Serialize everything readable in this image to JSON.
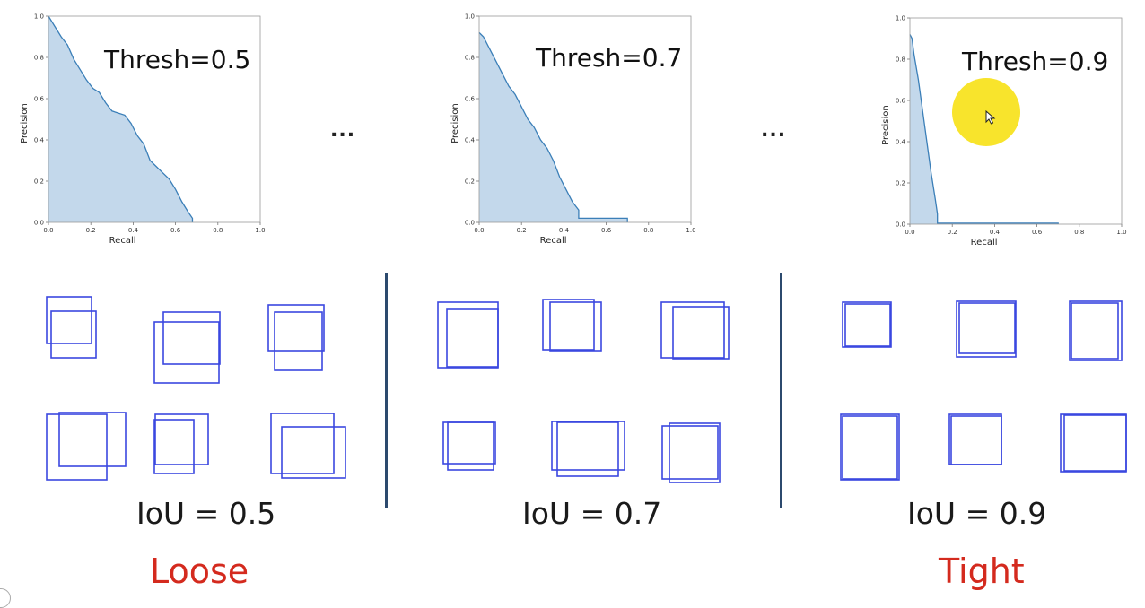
{
  "chart_data": [
    {
      "type": "area",
      "annotation": "Thresh=0.5",
      "xlabel": "Recall",
      "ylabel": "Precision",
      "xlim": [
        0,
        1
      ],
      "ylim": [
        0,
        1
      ],
      "xticks": [
        "0.0",
        "0.2",
        "0.4",
        "0.6",
        "0.8",
        "1.0"
      ],
      "yticks": [
        "0.0",
        "0.2",
        "0.4",
        "0.6",
        "0.8",
        "1.0"
      ],
      "fill_color": "#c3d8eb",
      "line_color": "#3b7fb8",
      "x": [
        0.0,
        0.03,
        0.06,
        0.09,
        0.12,
        0.15,
        0.18,
        0.21,
        0.24,
        0.27,
        0.3,
        0.33,
        0.36,
        0.39,
        0.42,
        0.45,
        0.48,
        0.51,
        0.54,
        0.57,
        0.6,
        0.63,
        0.66,
        0.68,
        0.68
      ],
      "y": [
        1.0,
        0.95,
        0.9,
        0.86,
        0.79,
        0.74,
        0.69,
        0.65,
        0.63,
        0.58,
        0.54,
        0.53,
        0.52,
        0.48,
        0.42,
        0.38,
        0.3,
        0.27,
        0.24,
        0.21,
        0.16,
        0.1,
        0.05,
        0.02,
        0.0
      ],
      "legend": false
    },
    {
      "type": "area",
      "annotation": "Thresh=0.7",
      "xlabel": "Recall",
      "ylabel": "Precision",
      "xlim": [
        0,
        1
      ],
      "ylim": [
        0,
        1
      ],
      "xticks": [
        "0.0",
        "0.2",
        "0.4",
        "0.6",
        "0.8",
        "1.0"
      ],
      "yticks": [
        "0.0",
        "0.2",
        "0.4",
        "0.6",
        "0.8",
        "1.0"
      ],
      "fill_color": "#c3d8eb",
      "line_color": "#3b7fb8",
      "x": [
        0.0,
        0.02,
        0.05,
        0.08,
        0.11,
        0.14,
        0.17,
        0.2,
        0.23,
        0.26,
        0.29,
        0.32,
        0.35,
        0.38,
        0.41,
        0.44,
        0.47,
        0.47,
        0.55,
        0.7,
        0.7
      ],
      "y": [
        0.92,
        0.9,
        0.84,
        0.78,
        0.72,
        0.66,
        0.62,
        0.56,
        0.5,
        0.46,
        0.4,
        0.36,
        0.3,
        0.22,
        0.16,
        0.1,
        0.06,
        0.02,
        0.02,
        0.02,
        0.0
      ],
      "legend": false
    },
    {
      "type": "area",
      "annotation": "Thresh=0.9",
      "xlabel": "Recall",
      "ylabel": "Precision",
      "xlim": [
        0,
        1
      ],
      "ylim": [
        0,
        1
      ],
      "xticks": [
        "0.0",
        "0.2",
        "0.4",
        "0.6",
        "0.8",
        "1.0"
      ],
      "yticks": [
        "0.0",
        "0.2",
        "0.4",
        "0.6",
        "0.8",
        "1.0"
      ],
      "fill_color": "#c3d8eb",
      "line_color": "#3b7fb8",
      "x": [
        0.0,
        0.01,
        0.02,
        0.04,
        0.06,
        0.08,
        0.1,
        0.12,
        0.13,
        0.13,
        0.7,
        0.7
      ],
      "y": [
        0.92,
        0.9,
        0.82,
        0.7,
        0.55,
        0.4,
        0.25,
        0.12,
        0.05,
        0.005,
        0.005,
        0.0
      ],
      "legend": false
    }
  ],
  "separators": {
    "ellipsis_left": "...",
    "ellipsis_right": "..."
  },
  "columns": [
    {
      "iou_label": "IoU = 0.5",
      "verdict": "Loose"
    },
    {
      "iou_label": "IoU = 0.7",
      "verdict": ""
    },
    {
      "iou_label": "IoU = 0.9",
      "verdict": "Tight"
    }
  ],
  "colors": {
    "box_stroke": "#3b48e0",
    "verdict": "#d42a1e",
    "divider": "#2c4a6e",
    "cursor_highlight": "#f7e21a"
  }
}
